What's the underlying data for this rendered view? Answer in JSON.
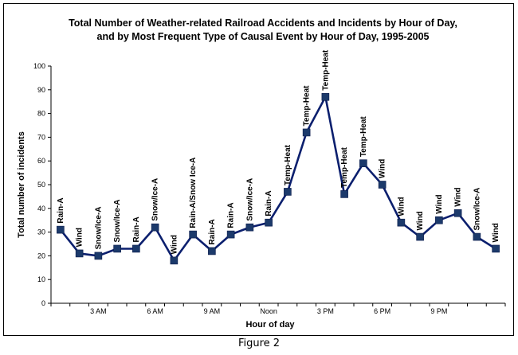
{
  "chart_data": {
    "type": "line",
    "title_line1": "Total Number of Weather-related Railroad Accidents and Incidents by Hour of Day,",
    "title_line2": "and by Most Frequent Type of Causal Event by Hour of Day, 1995-2005",
    "xlabel": "Hour of day",
    "ylabel": "Total number of incidents",
    "ylim": [
      0,
      100
    ],
    "yticks": [
      0,
      10,
      20,
      30,
      40,
      50,
      60,
      70,
      80,
      90,
      100
    ],
    "grid": false,
    "legend": "none",
    "x_tick_labels": [
      {
        "x": 3,
        "label": "3 AM"
      },
      {
        "x": 6,
        "label": "6 AM"
      },
      {
        "x": 9,
        "label": "9 AM"
      },
      {
        "x": 12,
        "label": "Noon"
      },
      {
        "x": 15,
        "label": "3 PM"
      },
      {
        "x": 18,
        "label": "6 PM"
      },
      {
        "x": 21,
        "label": "9 PM"
      }
    ],
    "series": [
      {
        "color": "#0b1f6e",
        "marker_color": "#1c3a6b",
        "points": [
          {
            "x": 1,
            "y": 31,
            "label": "Rain-A"
          },
          {
            "x": 2,
            "y": 21,
            "label": "Wind"
          },
          {
            "x": 3,
            "y": 20,
            "label": "Snow/Ice-A"
          },
          {
            "x": 4,
            "y": 23,
            "label": "Snow/Ice-A"
          },
          {
            "x": 5,
            "y": 23,
            "label": "Rain-A"
          },
          {
            "x": 6,
            "y": 32,
            "label": "Snow/Ice-A"
          },
          {
            "x": 7,
            "y": 18,
            "label": "Wind"
          },
          {
            "x": 8,
            "y": 29,
            "label": "Rain-A/Snow Ice-A"
          },
          {
            "x": 9,
            "y": 22,
            "label": "Rain-A"
          },
          {
            "x": 10,
            "y": 29,
            "label": "Rain-A"
          },
          {
            "x": 11,
            "y": 32,
            "label": "Snow/Ice-A"
          },
          {
            "x": 12,
            "y": 34,
            "label": "Rain-A"
          },
          {
            "x": 13,
            "y": 47,
            "label": "Temp-Heat"
          },
          {
            "x": 14,
            "y": 72,
            "label": "Temp-Heat"
          },
          {
            "x": 15,
            "y": 87,
            "label": "Temp-Heat"
          },
          {
            "x": 16,
            "y": 46,
            "label": "Temp-Heat"
          },
          {
            "x": 17,
            "y": 59,
            "label": "Temp-Heat"
          },
          {
            "x": 18,
            "y": 50,
            "label": "Wind"
          },
          {
            "x": 19,
            "y": 34,
            "label": "Wind"
          },
          {
            "x": 20,
            "y": 28,
            "label": "Wind"
          },
          {
            "x": 21,
            "y": 35,
            "label": "Wind"
          },
          {
            "x": 22,
            "y": 38,
            "label": "Wind"
          },
          {
            "x": 23,
            "y": 28,
            "label": "Snow/Ice-A"
          },
          {
            "x": 24,
            "y": 23,
            "label": "Wind"
          }
        ]
      }
    ]
  },
  "caption": "Figure 2"
}
